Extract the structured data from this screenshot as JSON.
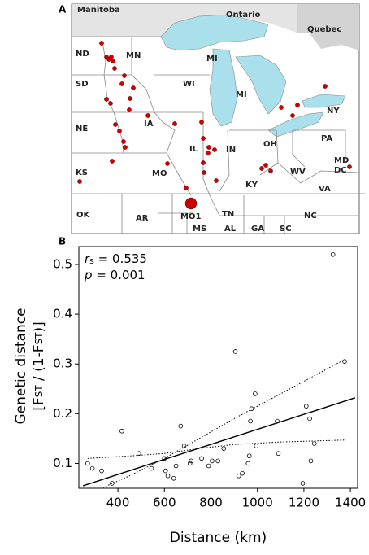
{
  "panel_a": {
    "letter": "A",
    "labels": [
      "Manitoba",
      "Ontario",
      "Quebec",
      "ND",
      "MN",
      "SD",
      "WI",
      "MI",
      "MI",
      "NY",
      "NE",
      "IA",
      "PA",
      "IL",
      "IN",
      "OH",
      "MO",
      "KS",
      "MD",
      "DC",
      "WV",
      "KY",
      "VA",
      "OK",
      "AR",
      "MO1",
      "TN",
      "NC",
      "MS",
      "AL",
      "GA",
      "SC"
    ]
  },
  "chart_data": {
    "type": "scatter",
    "panel": "B",
    "xlabel": "Distance (km)",
    "ylabel": [
      "Genetic distance",
      "[F",
      "ST",
      " / (1-F",
      "ST",
      ")]"
    ],
    "annotations": [
      {
        "symbol": "r",
        "sub": "s",
        "rest": " = 0.535"
      },
      {
        "symbol": "p",
        "rest": " = 0.001"
      }
    ],
    "x": [
      270,
      290,
      330,
      375,
      417,
      490,
      545,
      600,
      605,
      615,
      640,
      650,
      670,
      685,
      710,
      715,
      760,
      790,
      805,
      830,
      855,
      905,
      920,
      935,
      960,
      965,
      970,
      975,
      990,
      995,
      1085,
      1090,
      1195,
      1210,
      1225,
      1230,
      1245,
      1325,
      1375
    ],
    "values": [
      0.1,
      0.09,
      0.085,
      0.06,
      0.165,
      0.12,
      0.09,
      0.11,
      0.085,
      0.075,
      0.07,
      0.095,
      0.175,
      0.135,
      0.1,
      0.105,
      0.11,
      0.095,
      0.105,
      0.105,
      0.13,
      0.325,
      0.075,
      0.08,
      0.1,
      0.115,
      0.185,
      0.21,
      0.24,
      0.135,
      0.185,
      0.12,
      0.06,
      0.215,
      0.19,
      0.105,
      0.14,
      0.52,
      0.305
    ],
    "lines": [
      {
        "style": "solid",
        "x": [
          250,
          1420
        ],
        "values": [
          0.055,
          0.232
        ]
      },
      {
        "style": "dotted",
        "x": [
          280,
          450,
          600,
          750,
          900,
          1100,
          1380
        ],
        "values": [
          0.04,
          0.075,
          0.11,
          0.15,
          0.19,
          0.24,
          0.31
        ]
      },
      {
        "style": "dotted",
        "x": [
          270,
          450,
          600,
          750,
          900,
          1100,
          1380
        ],
        "values": [
          0.11,
          0.115,
          0.12,
          0.13,
          0.138,
          0.143,
          0.147
        ]
      }
    ],
    "xlim": [
      232,
      1431
    ],
    "ylim": [
      0.05,
      0.536
    ],
    "xticks": [
      400,
      600,
      800,
      1000,
      1200,
      1400
    ],
    "yticks": [
      0.1,
      0.2,
      0.3,
      0.4,
      0.5
    ]
  }
}
